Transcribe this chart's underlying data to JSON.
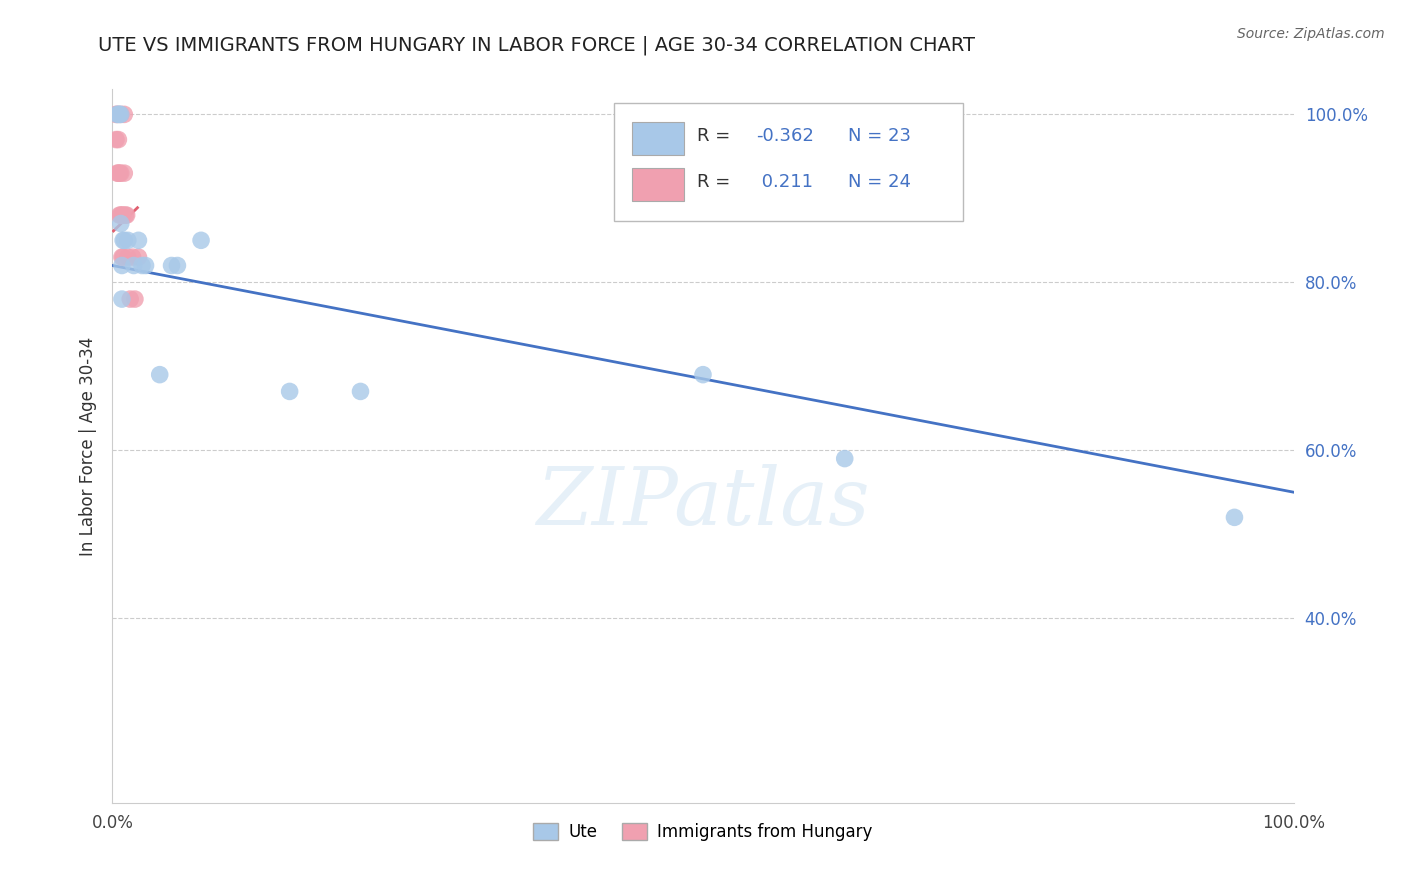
{
  "title": "UTE VS IMMIGRANTS FROM HUNGARY IN LABOR FORCE | AGE 30-34 CORRELATION CHART",
  "source": "Source: ZipAtlas.com",
  "ylabel": "In Labor Force | Age 30-34",
  "xmin": 0.0,
  "xmax": 1.0,
  "ymin": 0.18,
  "ymax": 1.03,
  "xtick_positions": [
    0.0,
    1.0
  ],
  "xtick_labels": [
    "0.0%",
    "100.0%"
  ],
  "ytick_positions": [
    0.4,
    0.6,
    0.8,
    1.0
  ],
  "ytick_labels": [
    "40.0%",
    "60.0%",
    "80.0%",
    "100.0%"
  ],
  "ute_R": -0.362,
  "ute_N": 23,
  "hungary_R": 0.211,
  "hungary_N": 24,
  "ute_color": "#a8c8e8",
  "hungary_color": "#f0a0b0",
  "ute_line_color": "#4472c4",
  "hungary_line_color": "#e06070",
  "watermark_text": "ZIPatlas",
  "ute_x": [
    0.004,
    0.005,
    0.006,
    0.007,
    0.007,
    0.008,
    0.008,
    0.009,
    0.01,
    0.013,
    0.018,
    0.022,
    0.025,
    0.028,
    0.04,
    0.05,
    0.055,
    0.075,
    0.15,
    0.21,
    0.5,
    0.62,
    0.95
  ],
  "ute_y": [
    1.0,
    1.0,
    1.0,
    1.0,
    0.87,
    0.82,
    0.78,
    0.85,
    0.85,
    0.85,
    0.82,
    0.85,
    0.82,
    0.82,
    0.69,
    0.82,
    0.82,
    0.85,
    0.67,
    0.67,
    0.69,
    0.59,
    0.52
  ],
  "hungary_x": [
    0.003,
    0.003,
    0.004,
    0.004,
    0.005,
    0.005,
    0.006,
    0.006,
    0.007,
    0.007,
    0.007,
    0.008,
    0.008,
    0.009,
    0.009,
    0.01,
    0.01,
    0.011,
    0.012,
    0.013,
    0.015,
    0.017,
    0.019,
    0.022
  ],
  "hungary_y": [
    1.0,
    0.97,
    1.0,
    0.93,
    0.97,
    0.93,
    0.93,
    0.88,
    1.0,
    0.93,
    0.88,
    0.88,
    0.83,
    0.83,
    0.88,
    1.0,
    0.93,
    0.88,
    0.88,
    0.83,
    0.78,
    0.83,
    0.78,
    0.83
  ],
  "ute_line_x0": 0.0,
  "ute_line_x1": 1.0,
  "ute_line_y0": 0.82,
  "ute_line_y1": 0.55,
  "hungary_line_x0": 0.0,
  "hungary_line_x1": 0.022,
  "hungary_line_y0": 0.86,
  "hungary_line_y1": 0.89
}
